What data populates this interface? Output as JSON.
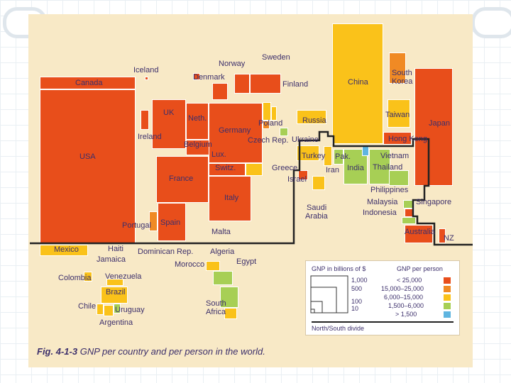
{
  "labels": {
    "canada": "Canada",
    "usa": "USA",
    "iceland": "Iceland",
    "norway": "Norway",
    "sweden": "Sweden",
    "denmark": "Denmark",
    "finland": "Finland",
    "uk": "UK",
    "ireland": "Ireland",
    "neth": "Neth.",
    "germany": "Germany",
    "belgium": "Belgium",
    "lux": "Lux.",
    "switz": "Switz.",
    "france": "France",
    "italy": "Italy",
    "spain": "Spain",
    "portugal": "Portugal",
    "malta": "Malta",
    "poland": "Poland",
    "czech": "Czech Rep.",
    "ukraine": "Ukraine",
    "russia": "Russia",
    "greece": "Greece",
    "israel": "Israel",
    "turkey": "Turkey",
    "iran": "Iran",
    "pak": "Pak.",
    "india": "India",
    "china": "China",
    "south_korea_1": "South",
    "south_korea_2": "Korea",
    "taiwan": "Taiwan",
    "japan": "Japan",
    "hong_kong": "Hong Kong",
    "vietnam": "Vietnam",
    "thailand": "Thailand",
    "philippines": "Philippines",
    "malaysia": "Malaysia",
    "singapore": "Singapore",
    "indonesia": "Indonesia",
    "saudi_1": "Saudi",
    "saudi_2": "Arabia",
    "australia": "Australia",
    "nz": "NZ",
    "mexico": "Mexico",
    "haiti": "Haiti",
    "jamaica": "Jamaica",
    "dominican": "Dominican Rep.",
    "algeria": "Algeria",
    "morocco": "Morocco",
    "egypt": "Egypt",
    "colombia": "Colombia",
    "venezuela": "Venezuela",
    "brazil": "Brazil",
    "chile": "Chile",
    "uruguay": "Uruguay",
    "argentina": "Argentina",
    "south_africa_1": "South",
    "south_africa_2": "Africa"
  },
  "legend": {
    "gnp_title": "GNP in billions of $",
    "sizes": [
      "1,000",
      "500",
      "100",
      "10"
    ],
    "per_person_title": "GNP per person",
    "classes": [
      {
        "label": "< 25,000",
        "color": "#e84e1b"
      },
      {
        "label": "15,000–25,000",
        "color": "#f08a24"
      },
      {
        "label": "6,000–15,000",
        "color": "#fac21a"
      },
      {
        "label": "1,500–6,000",
        "color": "#a7cf55"
      },
      {
        "label": "> 1,500",
        "color": "#5fb5e0"
      }
    ],
    "divide": "North/South divide"
  },
  "caption": {
    "fig": "Fig. 4-1-3",
    "text": "GNP per country and per person in the world."
  },
  "colors": {
    "background": "#f8e9c6",
    "divide_line": "#222222"
  }
}
